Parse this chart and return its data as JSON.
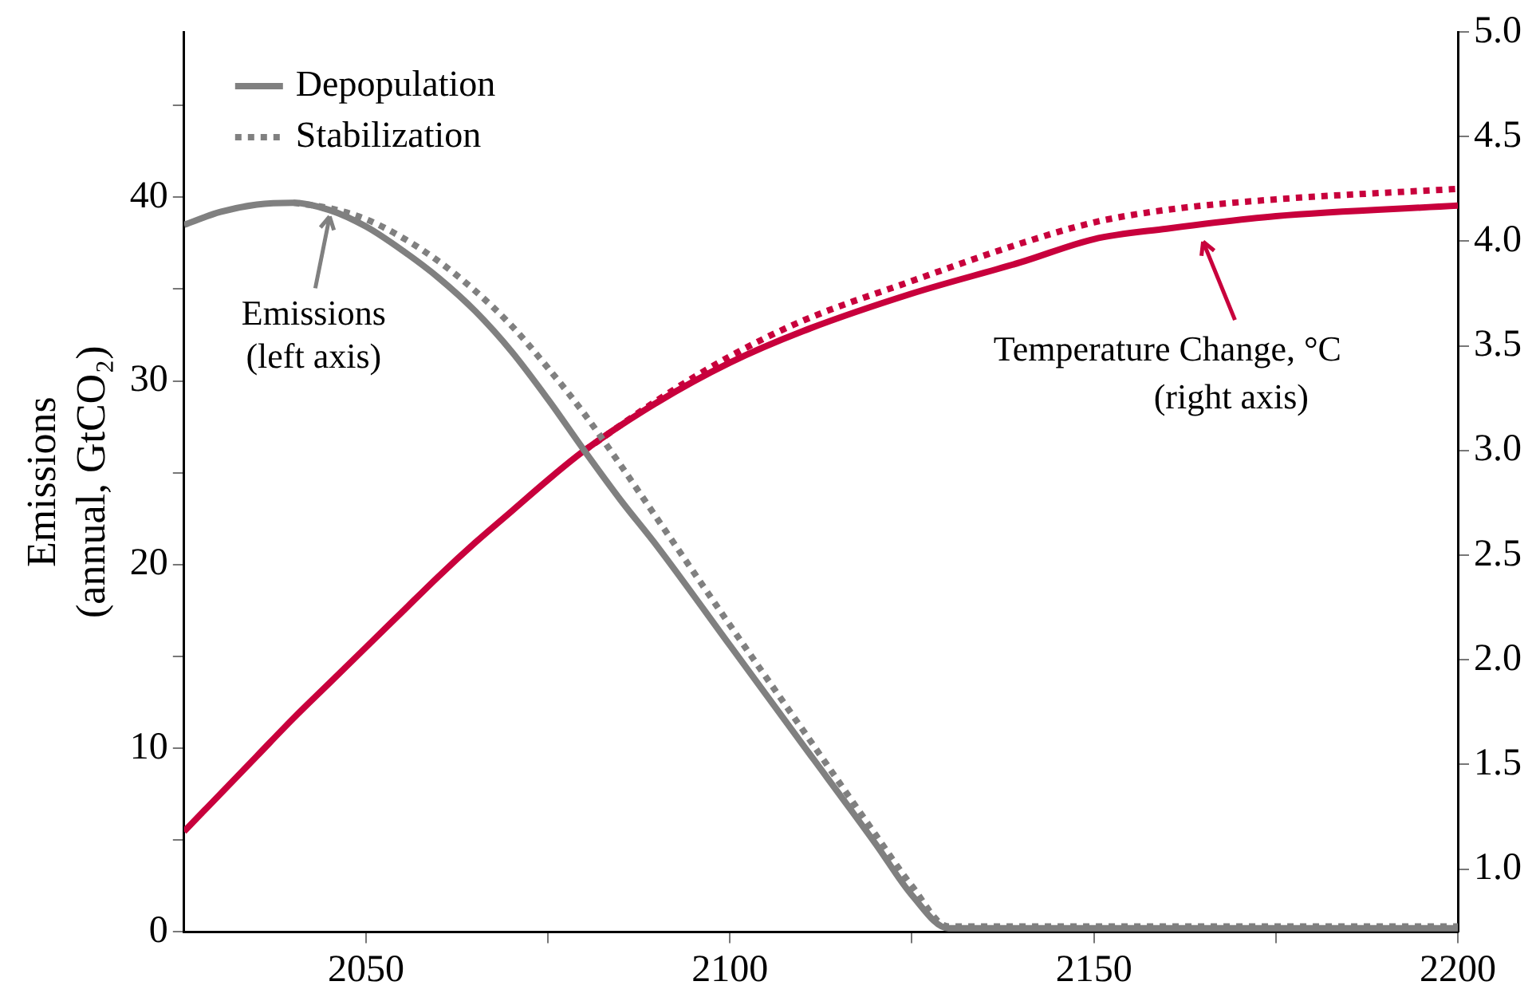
{
  "chart_data": {
    "type": "line",
    "ylabel": "Emissions\n(annual, GtCO₂)",
    "xlim": [
      2025,
      2200
    ],
    "xticks": [
      {
        "value": 2050,
        "label": "2050"
      },
      {
        "value": 2075,
        "label": null
      },
      {
        "value": 2100,
        "label": "2100"
      },
      {
        "value": 2125,
        "label": null
      },
      {
        "value": 2150,
        "label": "2150"
      },
      {
        "value": 2175,
        "label": null
      },
      {
        "value": 2200,
        "label": "2200"
      }
    ],
    "ylim": [
      0,
      49
    ],
    "yticks": [
      0,
      {
        "value": 5,
        "label": null
      },
      10,
      {
        "value": 15,
        "label": null
      },
      20,
      {
        "value": 25,
        "label": null
      },
      30,
      {
        "value": 35,
        "label": null
      },
      40,
      {
        "value": 45,
        "label": null
      }
    ],
    "y2lim": [
      0.7,
      5.0
    ],
    "y2ticks": [
      {
        "value": 1,
        "label": "1.0"
      },
      {
        "value": 1.5,
        "label": "1.5"
      },
      {
        "value": 2,
        "label": "2.0"
      },
      {
        "value": 2.5,
        "label": "2.5"
      },
      {
        "value": 3,
        "label": "3.0"
      },
      {
        "value": 3.5,
        "label": "3.5"
      },
      {
        "value": 4,
        "label": "4.0"
      },
      {
        "value": 4.5,
        "label": "4.5"
      },
      {
        "value": 5,
        "label": "5.0"
      }
    ],
    "grid": false,
    "legend": "top left",
    "marker": "none",
    "annotations": [
      {
        "text": "Emissions\n(left axis)",
        "x": 2045,
        "y": 39.3
      },
      "Temperature Change, °C\n(right axis)"
    ],
    "series": [
      {
        "name": "Depopulation",
        "color": "#808080",
        "line_style": "solid",
        "x": [
          2025,
          2030,
          2035,
          2040,
          2045,
          2050,
          2055,
          2060,
          2065,
          2070,
          2075,
          2080,
          2085,
          2090,
          2100,
          2110,
          2120,
          2125,
          2130,
          2200
        ],
        "values": [
          38.5,
          39.2,
          39.6,
          39.7,
          39.3,
          38.4,
          37.1,
          35.6,
          33.8,
          31.6,
          29.0,
          26.2,
          23.5,
          21.0,
          15.6,
          10.2,
          4.8,
          2.0,
          0.2,
          0.2
        ]
      },
      {
        "name": "Stabilization",
        "color": "#808080",
        "line_style": "dotted",
        "x": [
          2040,
          2045,
          2050,
          2055,
          2060,
          2065,
          2070,
          2075,
          2080,
          2085,
          2090,
          2100,
          2110,
          2120,
          2125,
          2130,
          2200
        ],
        "values": [
          39.7,
          39.4,
          38.8,
          37.8,
          36.5,
          34.9,
          33.0,
          30.7,
          28.2,
          25.4,
          22.5,
          16.7,
          11.0,
          5.3,
          2.5,
          0.3,
          0.3
        ]
      },
      {
        "color": "#c8003c",
        "line_style": "solid",
        "axis": "y2",
        "x": [
          2025,
          2030,
          2035,
          2040,
          2045,
          2050,
          2055,
          2060,
          2065,
          2070,
          2075,
          2080,
          2090,
          2100,
          2110,
          2125,
          2140,
          2150,
          2160,
          2175,
          2200
        ],
        "values": [
          1.18,
          1.36,
          1.54,
          1.72,
          1.89,
          2.06,
          2.23,
          2.4,
          2.56,
          2.71,
          2.86,
          3.0,
          3.23,
          3.42,
          3.57,
          3.75,
          3.9,
          4.01,
          4.06,
          4.12,
          4.17
        ]
      },
      {
        "color": "#c8003c",
        "line_style": "dotted",
        "axis": "y2",
        "x": [
          2080,
          2090,
          2100,
          2110,
          2125,
          2140,
          2150,
          2160,
          2175,
          2200
        ],
        "values": [
          3.0,
          3.24,
          3.45,
          3.62,
          3.81,
          3.99,
          4.09,
          4.15,
          4.2,
          4.25
        ]
      }
    ]
  }
}
